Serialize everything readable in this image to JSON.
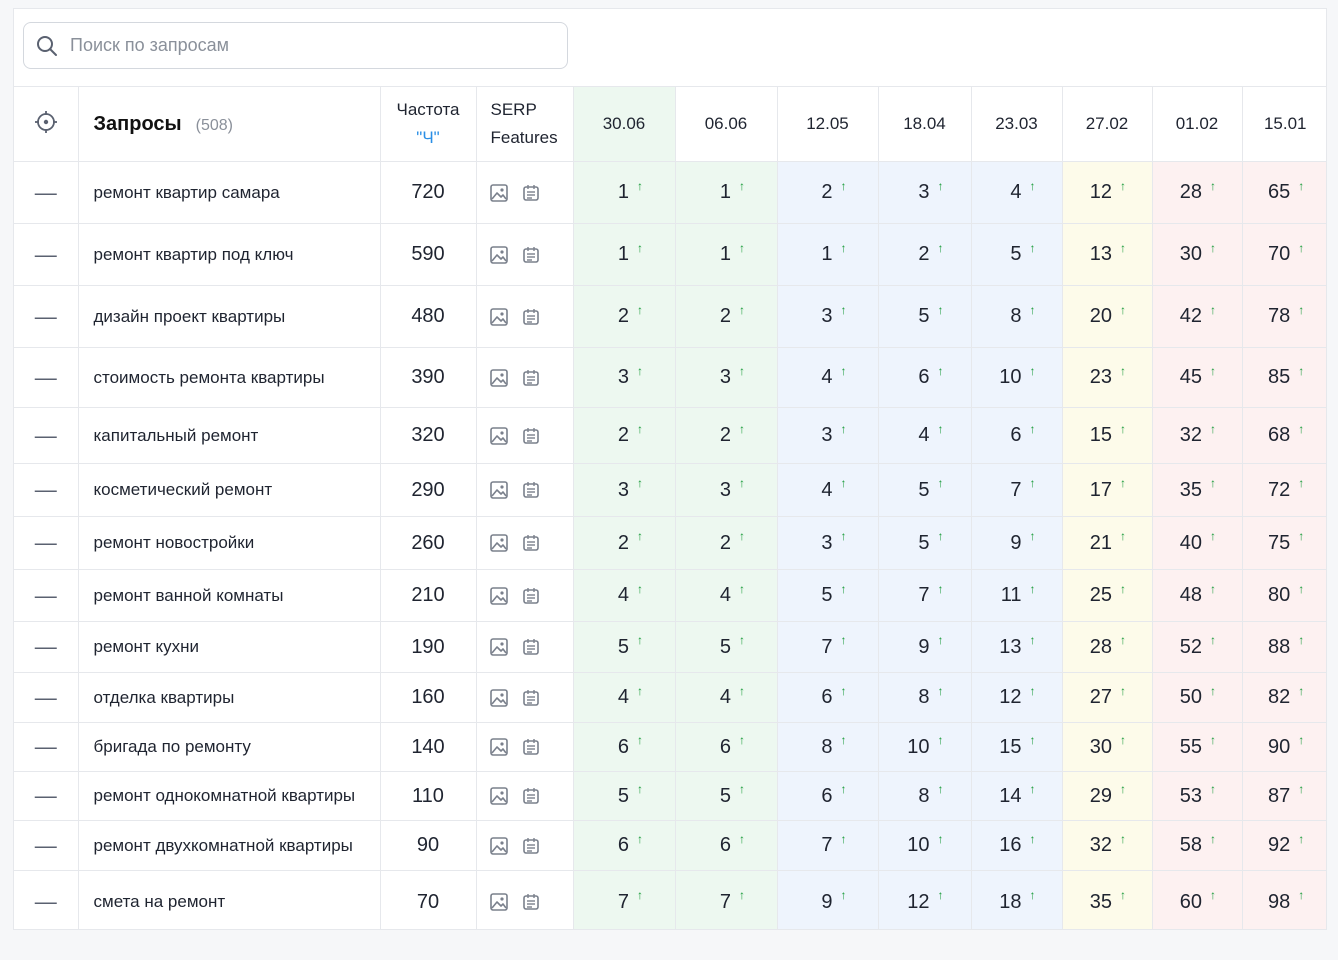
{
  "search": {
    "placeholder": "Поиск по запросам"
  },
  "header": {
    "title": "Запросы",
    "count": "(508)",
    "freq_title": "Частота",
    "freq_sub": "\"Ч\"",
    "serp_line1": "SERP",
    "serp_line2": "Features",
    "dates": [
      "30.06",
      "06.06",
      "12.05",
      "18.04",
      "23.03",
      "27.02",
      "01.02",
      "15.01"
    ]
  },
  "column_colors": [
    "#edf8f0",
    "#edf8f0",
    "#eef4fd",
    "#eef4fd",
    "#eef4fd",
    "#fdfbea",
    "#fdf1f1",
    "#fdf1f1"
  ],
  "row_heights": [
    62,
    62,
    62,
    60,
    56,
    53,
    53,
    52,
    51,
    50,
    49,
    49,
    50,
    63
  ],
  "rows": [
    {
      "query": "ремонт квартир самара",
      "freq": "720",
      "positions": [
        "1",
        "1",
        "2",
        "3",
        "4",
        "12",
        "28",
        "65"
      ]
    },
    {
      "query": "ремонт квартир под ключ",
      "freq": "590",
      "positions": [
        "1",
        "1",
        "1",
        "2",
        "5",
        "13",
        "30",
        "70"
      ]
    },
    {
      "query": "дизайн проект квартиры",
      "freq": "480",
      "positions": [
        "2",
        "2",
        "3",
        "5",
        "8",
        "20",
        "42",
        "78"
      ]
    },
    {
      "query": "стоимость ремонта квартиры",
      "freq": "390",
      "positions": [
        "3",
        "3",
        "4",
        "6",
        "10",
        "23",
        "45",
        "85"
      ]
    },
    {
      "query": "капитальный ремонт",
      "freq": "320",
      "positions": [
        "2",
        "2",
        "3",
        "4",
        "6",
        "15",
        "32",
        "68"
      ]
    },
    {
      "query": "косметический ремонт",
      "freq": "290",
      "positions": [
        "3",
        "3",
        "4",
        "5",
        "7",
        "17",
        "35",
        "72"
      ]
    },
    {
      "query": "ремонт новостройки",
      "freq": "260",
      "positions": [
        "2",
        "2",
        "3",
        "5",
        "9",
        "21",
        "40",
        "75"
      ]
    },
    {
      "query": "ремонт ванной комнаты",
      "freq": "210",
      "positions": [
        "4",
        "4",
        "5",
        "7",
        "11",
        "25",
        "48",
        "80"
      ]
    },
    {
      "query": "ремонт кухни",
      "freq": "190",
      "positions": [
        "5",
        "5",
        "7",
        "9",
        "13",
        "28",
        "52",
        "88"
      ]
    },
    {
      "query": "отделка квартиры",
      "freq": "160",
      "positions": [
        "4",
        "4",
        "6",
        "8",
        "12",
        "27",
        "50",
        "82"
      ]
    },
    {
      "query": "бригада по ремонту",
      "freq": "140",
      "positions": [
        "6",
        "6",
        "8",
        "10",
        "15",
        "30",
        "55",
        "90"
      ]
    },
    {
      "query": "ремонт однокомнатной квартиры",
      "freq": "110",
      "positions": [
        "5",
        "5",
        "6",
        "8",
        "14",
        "29",
        "53",
        "87"
      ]
    },
    {
      "query": "ремонт двухкомнатной квартиры",
      "freq": "90",
      "positions": [
        "6",
        "6",
        "7",
        "10",
        "16",
        "32",
        "58",
        "92"
      ]
    },
    {
      "query": "смета на ремонт",
      "freq": "70",
      "positions": [
        "7",
        "7",
        "9",
        "12",
        "18",
        "35",
        "60",
        "98"
      ]
    }
  ],
  "row_dash": "—",
  "arrow_glyph": "↑",
  "icons": {
    "search": "search-icon",
    "target": "crosshair-icon",
    "image": "image-icon",
    "snippet": "snippet-icon"
  }
}
